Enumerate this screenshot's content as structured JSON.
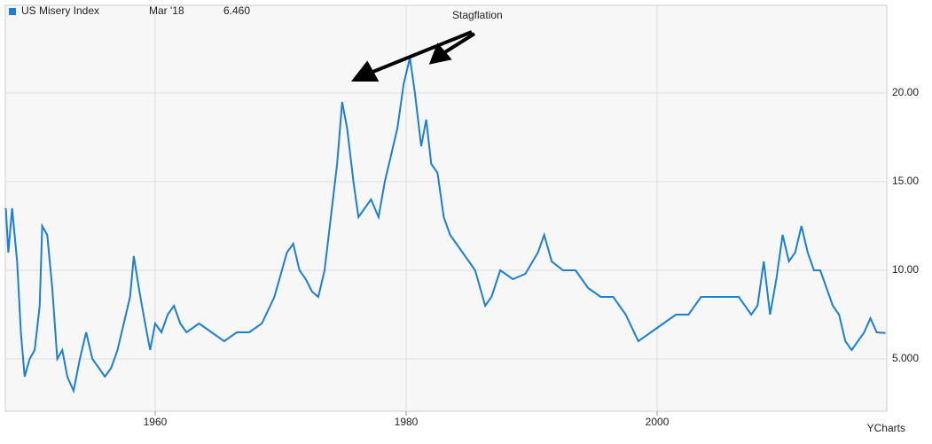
{
  "chart_data": {
    "type": "line",
    "annotation": "Stagflation",
    "legend_date": "Mar '18",
    "legend_value": "6.460",
    "source": "YCharts",
    "xlim": [
      1948.06,
      2018.3
    ],
    "xticks": [
      1960,
      1980,
      2000
    ],
    "ylim": [
      2.05,
      24.95
    ],
    "yticks": [
      {
        "value": 5,
        "label": "5.000"
      },
      {
        "value": 10,
        "label": "10.00"
      },
      {
        "value": 15,
        "label": "15.00"
      },
      {
        "value": 20,
        "label": "20.00"
      }
    ],
    "grid": true,
    "x": [
      1948.1,
      1948.3,
      1948.6,
      1949.0,
      1949.3,
      1949.6,
      1950.0,
      1950.4,
      1950.8,
      1951.0,
      1951.4,
      1951.8,
      1952.2,
      1952.6,
      1953.0,
      1953.5,
      1954.0,
      1954.5,
      1955.0,
      1955.5,
      1956.0,
      1956.5,
      1957.0,
      1957.5,
      1958.0,
      1958.3,
      1958.7,
      1959.2,
      1959.6,
      1960.0,
      1960.5,
      1961.0,
      1961.5,
      1962.0,
      1962.5,
      1963.5,
      1964.5,
      1965.5,
      1966.5,
      1967.5,
      1968.5,
      1969.5,
      1970.5,
      1971.0,
      1971.5,
      1972.0,
      1972.5,
      1973.0,
      1973.5,
      1974.0,
      1974.5,
      1974.9,
      1975.3,
      1975.8,
      1976.2,
      1976.7,
      1977.2,
      1977.8,
      1978.3,
      1978.8,
      1979.3,
      1979.8,
      1980.3,
      1980.7,
      1981.2,
      1981.6,
      1982.0,
      1982.5,
      1983.0,
      1983.5,
      1984.0,
      1984.5,
      1985.5,
      1986.3,
      1986.8,
      1987.5,
      1988.5,
      1989.5,
      1990.5,
      1991.0,
      1991.6,
      1992.5,
      1993.5,
      1994.5,
      1995.5,
      1996.5,
      1997.5,
      1998.5,
      1999.5,
      2000.5,
      2001.5,
      2002.5,
      2003.5,
      2004.5,
      2005.5,
      2006.5,
      2007.5,
      2008.0,
      2008.5,
      2009.0,
      2009.5,
      2010.0,
      2010.5,
      2011.0,
      2011.5,
      2012.0,
      2012.5,
      2013.0,
      2013.5,
      2014.0,
      2014.5,
      2015.0,
      2015.5,
      2016.0,
      2016.5,
      2017.0,
      2017.5,
      2018.2
    ],
    "series": [
      {
        "name": "US Misery Index",
        "color": "#1a7fd6",
        "values": [
          13.5,
          11,
          13.5,
          10.5,
          6.5,
          4,
          5,
          5.5,
          8,
          12.5,
          12,
          9,
          5,
          5.5,
          4,
          3.2,
          5,
          6.5,
          5,
          4.5,
          4,
          4.5,
          5.5,
          7,
          8.5,
          10.8,
          9,
          7,
          5.5,
          7,
          6.5,
          7.5,
          8,
          7,
          6.5,
          7,
          6.5,
          6,
          6.5,
          6.5,
          7,
          8.5,
          11,
          11.5,
          10,
          9.5,
          8.8,
          8.5,
          10,
          13,
          16,
          19.5,
          18,
          15,
          13,
          13.5,
          14,
          13,
          15,
          16.5,
          18,
          20.5,
          22,
          20,
          17,
          18.5,
          16,
          15.5,
          13,
          12,
          11.5,
          11,
          10,
          8,
          8.5,
          10,
          9.5,
          9.8,
          11,
          12,
          10.5,
          10,
          10,
          9,
          8.5,
          8.5,
          7.5,
          6,
          6.5,
          7,
          7.5,
          7.5,
          8.5,
          8.5,
          8.5,
          8.5,
          7.5,
          8,
          10.5,
          7.5,
          9.5,
          12,
          10.5,
          11,
          12.5,
          11,
          10,
          10,
          9,
          8,
          7.5,
          6,
          5.5,
          6,
          6.5,
          7.3,
          6.5,
          6.46
        ]
      }
    ]
  }
}
